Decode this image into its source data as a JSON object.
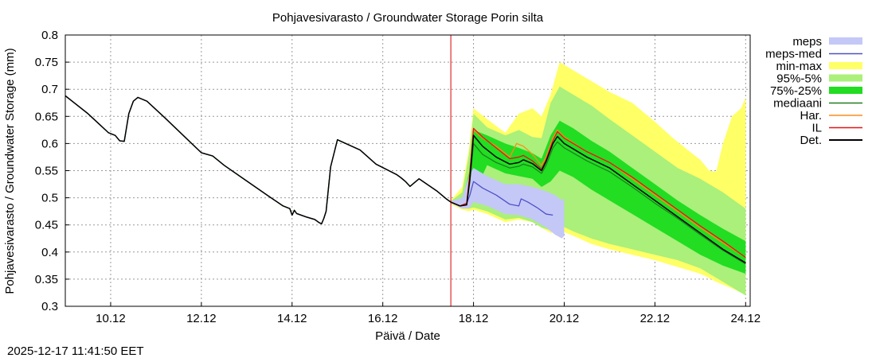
{
  "chart_data": {
    "type": "line",
    "title": "Pohjavesivarasto / Groundwater Storage   Porin silta",
    "xlabel": "Päivä / Date",
    "ylabel": "Pohjavesivarasto / Groundwater Storage (mm)",
    "timestamp": "2025-12-17 11:41:50 EET",
    "xlim": [
      9.0,
      24.1
    ],
    "ylim": [
      0.3,
      0.8
    ],
    "x_ticks": [
      {
        "x": 10.0,
        "label": "10.12"
      },
      {
        "x": 12.0,
        "label": "12.12"
      },
      {
        "x": 14.0,
        "label": "14.12"
      },
      {
        "x": 16.0,
        "label": "16.12"
      },
      {
        "x": 18.0,
        "label": "18.12"
      },
      {
        "x": 20.0,
        "label": "20.12"
      },
      {
        "x": 22.0,
        "label": "22.12"
      },
      {
        "x": 24.0,
        "label": "24.12"
      }
    ],
    "y_ticks": [
      {
        "y": 0.8,
        "label": "0.8"
      },
      {
        "y": 0.75,
        "label": "0.75"
      },
      {
        "y": 0.7,
        "label": "0.7"
      },
      {
        "y": 0.65,
        "label": "0.65"
      },
      {
        "y": 0.6,
        "label": "0.6"
      },
      {
        "y": 0.55,
        "label": "0.55"
      },
      {
        "y": 0.5,
        "label": "0.5"
      },
      {
        "y": 0.45,
        "label": "0.45"
      },
      {
        "y": 0.4,
        "label": "0.4"
      },
      {
        "y": 0.35,
        "label": "0.35"
      },
      {
        "y": 0.3,
        "label": "0.3"
      }
    ],
    "forecast_start": 17.5,
    "legend": [
      {
        "name": "meps",
        "kind": "band",
        "color": "#c4c8f7"
      },
      {
        "name": "meps-med",
        "kind": "line",
        "color": "#5050c8"
      },
      {
        "name": "min-max",
        "kind": "band",
        "color": "#ffff66"
      },
      {
        "name": "95%-5%",
        "kind": "band",
        "color": "#aaf07a"
      },
      {
        "name": "75%-25%",
        "kind": "band",
        "color": "#22dd22"
      },
      {
        "name": "mediaani",
        "kind": "line",
        "color": "#1f7f1f"
      },
      {
        "name": "Har.",
        "kind": "line",
        "color": "#ff8c1a"
      },
      {
        "name": "IL",
        "kind": "line",
        "color": "#e61414"
      },
      {
        "name": "Det.",
        "kind": "line",
        "color": "#000000"
      }
    ],
    "series": [
      {
        "name": "Det.",
        "color": "#000000",
        "x": [
          9.0,
          9.5,
          9.95,
          10.1,
          10.2,
          10.3,
          10.4,
          10.5,
          10.6,
          10.8,
          11.2,
          11.6,
          12.0,
          12.25,
          12.5,
          13.0,
          13.5,
          13.8,
          13.95,
          14.0,
          14.05,
          14.1,
          14.3,
          14.5,
          14.6,
          14.65,
          14.7,
          14.75,
          14.85,
          15.0,
          15.5,
          15.85,
          16.3,
          16.4,
          16.5,
          16.6,
          16.8,
          17.2,
          17.4,
          17.5,
          17.7,
          17.85,
          17.92,
          18.0,
          18.2,
          18.5,
          18.8,
          19.0,
          19.1,
          19.3,
          19.5,
          19.6,
          19.75,
          19.85,
          20.0,
          20.5,
          21.0,
          21.5,
          22.0,
          22.5,
          23.0,
          23.5,
          24.0
        ],
        "y": [
          0.688,
          0.655,
          0.62,
          0.615,
          0.605,
          0.604,
          0.655,
          0.678,
          0.685,
          0.678,
          0.647,
          0.615,
          0.583,
          0.577,
          0.56,
          0.531,
          0.502,
          0.485,
          0.48,
          0.468,
          0.477,
          0.471,
          0.465,
          0.46,
          0.454,
          0.452,
          0.462,
          0.475,
          0.557,
          0.607,
          0.588,
          0.562,
          0.543,
          0.537,
          0.53,
          0.521,
          0.535,
          0.512,
          0.498,
          0.492,
          0.485,
          0.487,
          0.535,
          0.615,
          0.595,
          0.575,
          0.562,
          0.565,
          0.57,
          0.563,
          0.55,
          0.567,
          0.6,
          0.613,
          0.6,
          0.575,
          0.555,
          0.525,
          0.495,
          0.465,
          0.435,
          0.405,
          0.38
        ]
      },
      {
        "name": "mediaani",
        "color": "#1f7f1f",
        "x": [
          9.0,
          9.5,
          9.95,
          10.1,
          10.2,
          10.3,
          10.4,
          10.5,
          10.6,
          10.8,
          11.2,
          11.6,
          12.0,
          12.25,
          12.5,
          13.0,
          13.5,
          13.8,
          13.95,
          14.0,
          14.05,
          14.1,
          14.3,
          14.5,
          14.6,
          14.65,
          14.7,
          14.75,
          14.85,
          15.0,
          15.5,
          15.85,
          16.3,
          16.4,
          16.5,
          16.6,
          16.8,
          17.2,
          17.4,
          17.5,
          17.7,
          17.85,
          17.92,
          18.0,
          18.2,
          18.5,
          18.8,
          19.0,
          19.1,
          19.3,
          19.5,
          19.6,
          19.75,
          19.85,
          20.0,
          20.5,
          21.0,
          21.5,
          22.0,
          22.5,
          23.0,
          23.5,
          24.0
        ],
        "y": [
          0.688,
          0.655,
          0.62,
          0.615,
          0.605,
          0.604,
          0.655,
          0.678,
          0.685,
          0.678,
          0.647,
          0.615,
          0.583,
          0.577,
          0.56,
          0.531,
          0.502,
          0.485,
          0.48,
          0.468,
          0.477,
          0.471,
          0.465,
          0.46,
          0.454,
          0.452,
          0.462,
          0.475,
          0.557,
          0.607,
          0.588,
          0.562,
          0.543,
          0.537,
          0.53,
          0.521,
          0.535,
          0.512,
          0.498,
          0.492,
          0.485,
          0.487,
          0.53,
          0.6,
          0.58,
          0.565,
          0.555,
          0.558,
          0.562,
          0.557,
          0.545,
          0.56,
          0.592,
          0.603,
          0.592,
          0.568,
          0.548,
          0.52,
          0.49,
          0.462,
          0.432,
          0.403,
          0.378
        ]
      },
      {
        "name": "Har.",
        "color": "#ff8c1a",
        "x": [
          17.5,
          17.7,
          17.85,
          17.92,
          18.0,
          18.2,
          18.5,
          18.8,
          18.95,
          19.1,
          19.3,
          19.5,
          19.6,
          19.75,
          19.85,
          20.0,
          20.5,
          21.0,
          21.5,
          22.0,
          22.5,
          23.0,
          23.5,
          24.0
        ],
        "y": [
          0.492,
          0.485,
          0.49,
          0.545,
          0.625,
          0.61,
          0.595,
          0.575,
          0.6,
          0.595,
          0.58,
          0.56,
          0.575,
          0.61,
          0.625,
          0.612,
          0.585,
          0.565,
          0.535,
          0.505,
          0.475,
          0.445,
          0.417,
          0.39
        ]
      },
      {
        "name": "IL",
        "color": "#e61414",
        "x": [
          17.5,
          17.7,
          17.85,
          17.92,
          18.0,
          18.2,
          18.5,
          18.8,
          19.0,
          19.1,
          19.3,
          19.5,
          19.6,
          19.75,
          19.85,
          20.0,
          20.5,
          21.0,
          21.5,
          22.0,
          22.5,
          23.0,
          23.5,
          24.0
        ],
        "y": [
          0.492,
          0.485,
          0.49,
          0.545,
          0.628,
          0.612,
          0.592,
          0.572,
          0.575,
          0.578,
          0.568,
          0.553,
          0.57,
          0.605,
          0.622,
          0.61,
          0.585,
          0.565,
          0.538,
          0.508,
          0.478,
          0.448,
          0.42,
          0.39
        ]
      },
      {
        "name": "meps-med",
        "color": "#5050c8",
        "x": [
          17.5,
          17.7,
          17.85,
          17.92,
          18.0,
          18.2,
          18.5,
          18.8,
          19.0,
          19.05,
          19.2,
          19.4,
          19.6,
          19.75
        ],
        "y": [
          0.492,
          0.485,
          0.49,
          0.505,
          0.53,
          0.518,
          0.505,
          0.488,
          0.485,
          0.498,
          0.492,
          0.482,
          0.47,
          0.468
        ]
      }
    ],
    "bands": [
      {
        "name": "min-max",
        "color": "#ffff66",
        "x": [
          17.5,
          17.75,
          17.9,
          18.0,
          18.3,
          18.7,
          19.0,
          19.3,
          19.5,
          19.7,
          19.9,
          20.2,
          20.6,
          21.0,
          21.5,
          22.0,
          22.4,
          22.8,
          23.0,
          23.2,
          23.35,
          23.5,
          23.7,
          23.9,
          24.0
        ],
        "lower": [
          0.488,
          0.478,
          0.475,
          0.478,
          0.47,
          0.455,
          0.46,
          0.455,
          0.445,
          0.435,
          0.44,
          0.43,
          0.415,
          0.405,
          0.395,
          0.385,
          0.375,
          0.365,
          0.36,
          0.352,
          0.345,
          0.34,
          0.333,
          0.325,
          0.32
        ],
        "upper": [
          0.495,
          0.52,
          0.59,
          0.665,
          0.645,
          0.62,
          0.655,
          0.665,
          0.65,
          0.69,
          0.75,
          0.735,
          0.715,
          0.695,
          0.675,
          0.64,
          0.61,
          0.583,
          0.57,
          0.55,
          0.548,
          0.6,
          0.65,
          0.665,
          0.685
        ]
      },
      {
        "name": "95%-5%",
        "color": "#aaf07a",
        "x": [
          17.5,
          17.75,
          17.9,
          18.0,
          18.3,
          18.7,
          19.0,
          19.3,
          19.5,
          19.7,
          19.9,
          20.2,
          20.6,
          21.0,
          21.5,
          22.0,
          22.5,
          23.0,
          23.5,
          24.0
        ],
        "lower": [
          0.49,
          0.482,
          0.48,
          0.482,
          0.475,
          0.46,
          0.463,
          0.455,
          0.445,
          0.44,
          0.45,
          0.438,
          0.425,
          0.415,
          0.405,
          0.395,
          0.385,
          0.37,
          0.345,
          0.32
        ],
        "upper": [
          0.494,
          0.51,
          0.58,
          0.655,
          0.63,
          0.615,
          0.625,
          0.612,
          0.61,
          0.675,
          0.705,
          0.69,
          0.67,
          0.645,
          0.615,
          0.585,
          0.555,
          0.535,
          0.51,
          0.48
        ]
      },
      {
        "name": "75%-25%",
        "color": "#22dd22",
        "x": [
          17.5,
          17.75,
          17.9,
          18.0,
          18.3,
          18.7,
          19.0,
          19.3,
          19.5,
          19.7,
          19.9,
          20.2,
          20.6,
          21.0,
          21.5,
          22.0,
          22.5,
          23.0,
          23.5,
          24.0
        ],
        "lower": [
          0.491,
          0.484,
          0.485,
          0.505,
          0.56,
          0.545,
          0.54,
          0.535,
          0.52,
          0.53,
          0.55,
          0.538,
          0.515,
          0.495,
          0.47,
          0.445,
          0.42,
          0.395,
          0.375,
          0.36
        ],
        "upper": [
          0.493,
          0.495,
          0.545,
          0.625,
          0.615,
          0.6,
          0.592,
          0.582,
          0.572,
          0.615,
          0.642,
          0.628,
          0.605,
          0.585,
          0.555,
          0.525,
          0.495,
          0.468,
          0.443,
          0.42
        ]
      },
      {
        "name": "meps",
        "color": "#c4c8f7",
        "x": [
          17.5,
          17.75,
          17.9,
          18.0,
          18.3,
          18.7,
          19.0,
          19.3,
          19.6,
          19.8,
          19.95,
          20.0
        ],
        "lower": [
          0.49,
          0.48,
          0.48,
          0.492,
          0.485,
          0.47,
          0.468,
          0.46,
          0.445,
          0.432,
          0.425,
          0.43
        ],
        "upper": [
          0.494,
          0.5,
          0.54,
          0.555,
          0.54,
          0.525,
          0.525,
          0.52,
          0.512,
          0.505,
          0.495,
          0.5
        ]
      }
    ]
  }
}
